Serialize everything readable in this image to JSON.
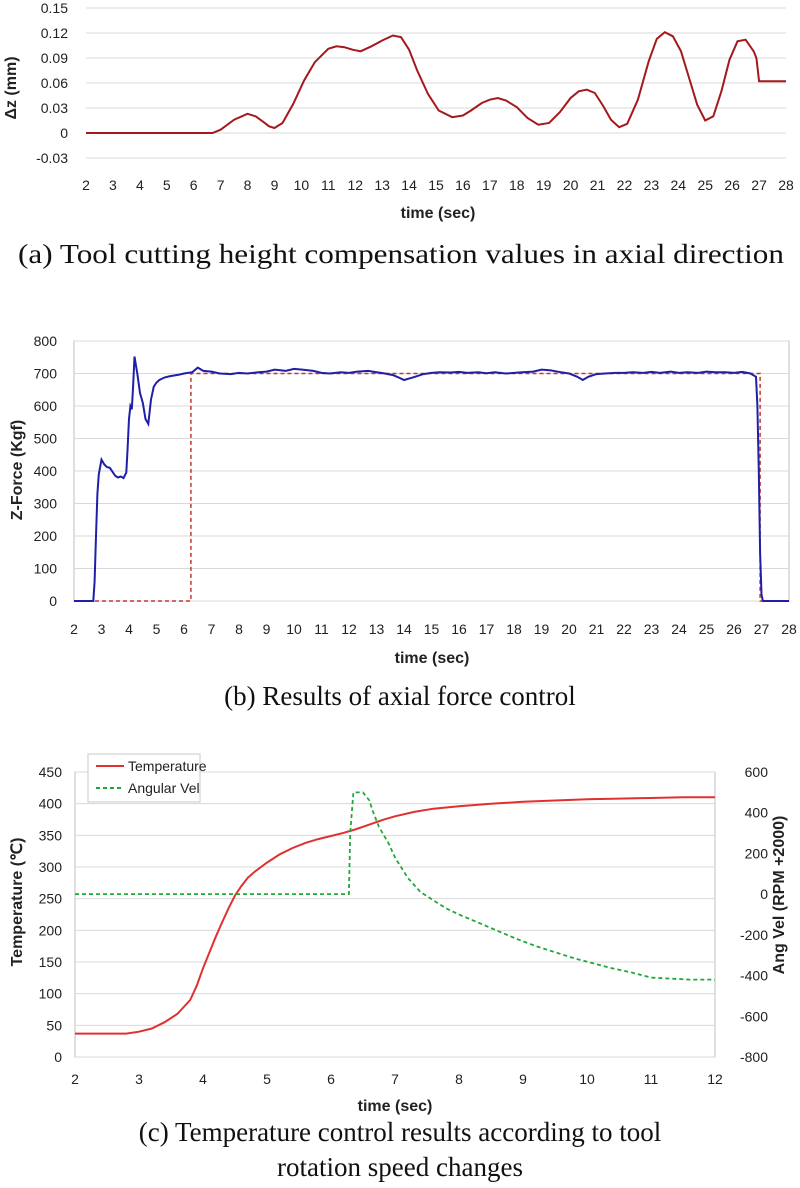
{
  "colors": {
    "panel_a_line": "#a3191c",
    "panel_b_force": "#1f1fa8",
    "panel_b_ref": "#c0392b",
    "temperature": "#e03030",
    "angular_vel": "#22a83a",
    "grid": "#d9d9d9"
  },
  "chart_data": [
    {
      "id": "a",
      "type": "line",
      "xlabel": "time (sec)",
      "ylabel": "Δz (mm)",
      "xlim": [
        2,
        28
      ],
      "ylim": [
        -0.03,
        0.15
      ],
      "xticks": [
        "2",
        "3",
        "4",
        "5",
        "6",
        "7",
        "8",
        "9",
        "10",
        "11",
        "12",
        "13",
        "14",
        "15",
        "16",
        "17",
        "18",
        "19",
        "20",
        "21",
        "22",
        "23",
        "24",
        "25",
        "26",
        "27",
        "28"
      ],
      "yticks": [
        "-0.03",
        "0",
        "0.03",
        "0.06",
        "0.09",
        "0.12",
        "0.15"
      ],
      "grid": "horizontal",
      "caption": "(a) Tool cutting height compensation values in axial direction",
      "series": [
        {
          "x": [
            2,
            6.7,
            7.0,
            7.5,
            8.0,
            8.3,
            8.6,
            8.8,
            9.0,
            9.3,
            9.7,
            10.1,
            10.5,
            11.0,
            11.3,
            11.6,
            11.9,
            12.2,
            12.6,
            13.0,
            13.4,
            13.7,
            14.0,
            14.3,
            14.7,
            15.1,
            15.6,
            16.0,
            16.3,
            16.7,
            17.0,
            17.3,
            17.6,
            18.0,
            18.4,
            18.8,
            19.2,
            19.6,
            20.0,
            20.3,
            20.6,
            20.9,
            21.2,
            21.5,
            21.8,
            22.1,
            22.5,
            22.9,
            23.2,
            23.5,
            23.8,
            24.1,
            24.4,
            24.7,
            25.0,
            25.3,
            25.6,
            25.9,
            26.2,
            26.5,
            26.8,
            26.9,
            27.0,
            28.0
          ],
          "y": [
            0,
            0,
            0.004,
            0.016,
            0.023,
            0.02,
            0.013,
            0.008,
            0.006,
            0.012,
            0.035,
            0.063,
            0.085,
            0.101,
            0.104,
            0.103,
            0.1,
            0.098,
            0.104,
            0.111,
            0.117,
            0.115,
            0.1,
            0.075,
            0.047,
            0.027,
            0.019,
            0.021,
            0.027,
            0.036,
            0.04,
            0.042,
            0.039,
            0.031,
            0.018,
            0.01,
            0.012,
            0.025,
            0.042,
            0.05,
            0.052,
            0.048,
            0.033,
            0.016,
            0.007,
            0.011,
            0.04,
            0.086,
            0.113,
            0.121,
            0.116,
            0.098,
            0.066,
            0.034,
            0.015,
            0.02,
            0.05,
            0.088,
            0.11,
            0.112,
            0.098,
            0.09,
            0.062,
            0.062
          ]
        }
      ]
    },
    {
      "id": "b",
      "type": "line",
      "xlabel": "time (sec)",
      "ylabel": "Z-Force (Kgf)",
      "xlim": [
        2,
        28
      ],
      "ylim": [
        0,
        800
      ],
      "xticks": [
        "2",
        "3",
        "4",
        "5",
        "6",
        "7",
        "8",
        "9",
        "10",
        "11",
        "12",
        "13",
        "14",
        "15",
        "16",
        "17",
        "18",
        "19",
        "20",
        "21",
        "22",
        "23",
        "24",
        "25",
        "26",
        "27",
        "28"
      ],
      "yticks": [
        "0",
        "100",
        "200",
        "300",
        "400",
        "500",
        "600",
        "700",
        "800"
      ],
      "grid": "horizontal",
      "caption": "(b) Results of axial force control",
      "series": [
        {
          "style": "solid",
          "x": [
            2,
            2.7,
            2.75,
            2.8,
            2.85,
            2.9,
            3.0,
            3.1,
            3.2,
            3.3,
            3.5,
            3.6,
            3.7,
            3.8,
            3.9,
            3.95,
            4.0,
            4.05,
            4.1,
            4.15,
            4.2,
            4.3,
            4.4,
            4.5,
            4.6,
            4.7,
            4.8,
            4.9,
            5.0,
            5.1,
            5.3,
            5.5,
            5.8,
            6.0,
            6.3,
            6.5,
            6.7,
            7.0,
            7.3,
            7.7,
            8.0,
            8.3,
            8.7,
            9.0,
            9.3,
            9.7,
            10.0,
            10.3,
            10.7,
            11.0,
            11.3,
            11.7,
            12.0,
            12.3,
            12.7,
            13.0,
            13.3,
            13.6,
            13.8,
            14.0,
            14.2,
            14.4,
            14.7,
            15.0,
            15.3,
            15.7,
            16.0,
            16.3,
            16.7,
            17.0,
            17.3,
            17.7,
            18.0,
            18.3,
            18.7,
            19.0,
            19.3,
            19.7,
            20.0,
            20.3,
            20.5,
            20.7,
            21.0,
            21.3,
            21.7,
            22.0,
            22.3,
            22.7,
            23.0,
            23.3,
            23.7,
            24.0,
            24.3,
            24.7,
            25.0,
            25.3,
            25.7,
            26.0,
            26.3,
            26.6,
            26.8,
            26.85,
            26.9,
            26.95,
            27.0,
            27.05,
            28.0
          ],
          "y": [
            0,
            0,
            60,
            200,
            330,
            390,
            435,
            420,
            412,
            410,
            385,
            380,
            383,
            378,
            395,
            470,
            560,
            600,
            590,
            660,
            752,
            700,
            640,
            610,
            560,
            545,
            620,
            660,
            672,
            680,
            688,
            692,
            696,
            700,
            704,
            718,
            708,
            706,
            700,
            698,
            702,
            700,
            704,
            706,
            712,
            708,
            714,
            712,
            708,
            702,
            700,
            704,
            702,
            706,
            708,
            704,
            700,
            695,
            688,
            680,
            685,
            690,
            698,
            702,
            704,
            703,
            705,
            702,
            704,
            701,
            704,
            700,
            702,
            704,
            706,
            712,
            710,
            704,
            700,
            690,
            680,
            690,
            698,
            700,
            702,
            702,
            704,
            702,
            705,
            702,
            706,
            702,
            704,
            702,
            706,
            704,
            704,
            702,
            705,
            700,
            690,
            600,
            400,
            150,
            20,
            0,
            0
          ]
        },
        {
          "style": "dashed",
          "x": [
            2,
            6.25,
            6.25,
            26.95,
            26.95,
            28
          ],
          "y": [
            0,
            0,
            700,
            700,
            0,
            0
          ]
        }
      ]
    },
    {
      "id": "c",
      "type": "line",
      "xlabel": "time (sec)",
      "ylabel": "Temperature (℃)",
      "y2label": "Ang Vel (RPM +2000)",
      "xlim": [
        2,
        12
      ],
      "ylim": [
        0,
        450
      ],
      "y2lim": [
        -800,
        600
      ],
      "xticks": [
        "2",
        "3",
        "4",
        "5",
        "6",
        "7",
        "8",
        "9",
        "10",
        "11",
        "12"
      ],
      "yticks": [
        "0",
        "50",
        "100",
        "150",
        "200",
        "250",
        "300",
        "350",
        "400",
        "450"
      ],
      "y2ticks": [
        "-800",
        "-600",
        "-400",
        "-200",
        "0",
        "200",
        "400",
        "600"
      ],
      "grid": "horizontal",
      "legend": "top-left",
      "caption_line1": "(c) Temperature control results according to tool",
      "caption_line2": "rotation speed changes",
      "series": [
        {
          "name": "Temperature",
          "axis": "left",
          "style": "solid",
          "x": [
            2,
            2.5,
            2.8,
            3.0,
            3.2,
            3.4,
            3.6,
            3.8,
            3.9,
            4.0,
            4.1,
            4.2,
            4.3,
            4.4,
            4.5,
            4.6,
            4.7,
            4.8,
            5.0,
            5.2,
            5.4,
            5.6,
            5.8,
            6.0,
            6.2,
            6.4,
            6.6,
            6.8,
            7.0,
            7.3,
            7.6,
            8.0,
            8.5,
            9.0,
            9.5,
            10.0,
            10.5,
            11.0,
            11.5,
            12.0
          ],
          "y": [
            37,
            37,
            37,
            40,
            45,
            55,
            68,
            90,
            112,
            140,
            165,
            190,
            213,
            235,
            255,
            270,
            283,
            292,
            307,
            320,
            330,
            338,
            344,
            349,
            354,
            360,
            367,
            374,
            380,
            387,
            392,
            396,
            400,
            403,
            405,
            407,
            408,
            409,
            410,
            410
          ]
        },
        {
          "name": "Angular Vel",
          "axis": "right",
          "style": "dashed",
          "x": [
            2,
            6.28,
            6.3,
            6.35,
            6.5,
            6.6,
            6.65,
            6.75,
            6.9,
            7.0,
            7.2,
            7.4,
            7.6,
            7.8,
            8.0,
            8.3,
            8.6,
            8.9,
            9.2,
            9.5,
            9.8,
            10.1,
            10.4,
            10.7,
            11.0,
            11.3,
            11.6,
            12.0
          ],
          "y": [
            0,
            0,
            300,
            500,
            500,
            460,
            410,
            330,
            250,
            180,
            80,
            10,
            -30,
            -70,
            -100,
            -140,
            -180,
            -220,
            -255,
            -285,
            -315,
            -340,
            -365,
            -385,
            -410,
            -415,
            -420,
            -420
          ]
        }
      ]
    }
  ]
}
